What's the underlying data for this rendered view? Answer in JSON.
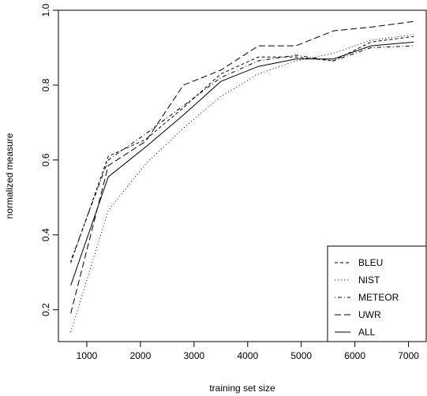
{
  "chart_data": {
    "type": "line",
    "title": "",
    "xlabel": "training set size",
    "ylabel": "normalized measure",
    "xlim": [
      470,
      7330
    ],
    "ylim": [
      0.115,
      1.0
    ],
    "xticks": [
      1000,
      2000,
      3000,
      4000,
      5000,
      6000,
      7000
    ],
    "yticks": [
      0.2,
      0.4,
      0.6,
      0.8,
      1.0
    ],
    "xtick_labels": [
      "1000",
      "2000",
      "3000",
      "4000",
      "5000",
      "6000",
      "7000"
    ],
    "ytick_labels": [
      "0.2",
      "0.4",
      "0.6",
      "0.8",
      "1.0"
    ],
    "grid": false,
    "legend_position": "bottom-right",
    "x": [
      700,
      1400,
      2100,
      2800,
      3500,
      4200,
      4900,
      5600,
      6300,
      7100
    ],
    "series": [
      {
        "name": "BLEU",
        "style": "dashed",
        "values": [
          0.325,
          0.61,
          0.655,
          0.74,
          0.83,
          0.875,
          0.875,
          0.865,
          0.915,
          0.93
        ]
      },
      {
        "name": "NIST",
        "style": "dotted",
        "values": [
          0.14,
          0.465,
          0.59,
          0.685,
          0.77,
          0.83,
          0.865,
          0.885,
          0.92,
          0.935
        ]
      },
      {
        "name": "METEOR",
        "style": "dotdash",
        "values": [
          0.33,
          0.6,
          0.67,
          0.745,
          0.82,
          0.865,
          0.88,
          0.865,
          0.9,
          0.905
        ]
      },
      {
        "name": "UWR",
        "style": "longdash",
        "values": [
          0.19,
          0.585,
          0.65,
          0.8,
          0.84,
          0.905,
          0.905,
          0.945,
          0.955,
          0.97
        ]
      },
      {
        "name": "ALL",
        "style": "solid",
        "values": [
          0.265,
          0.555,
          0.635,
          0.72,
          0.81,
          0.85,
          0.87,
          0.87,
          0.905,
          0.915
        ]
      }
    ]
  }
}
